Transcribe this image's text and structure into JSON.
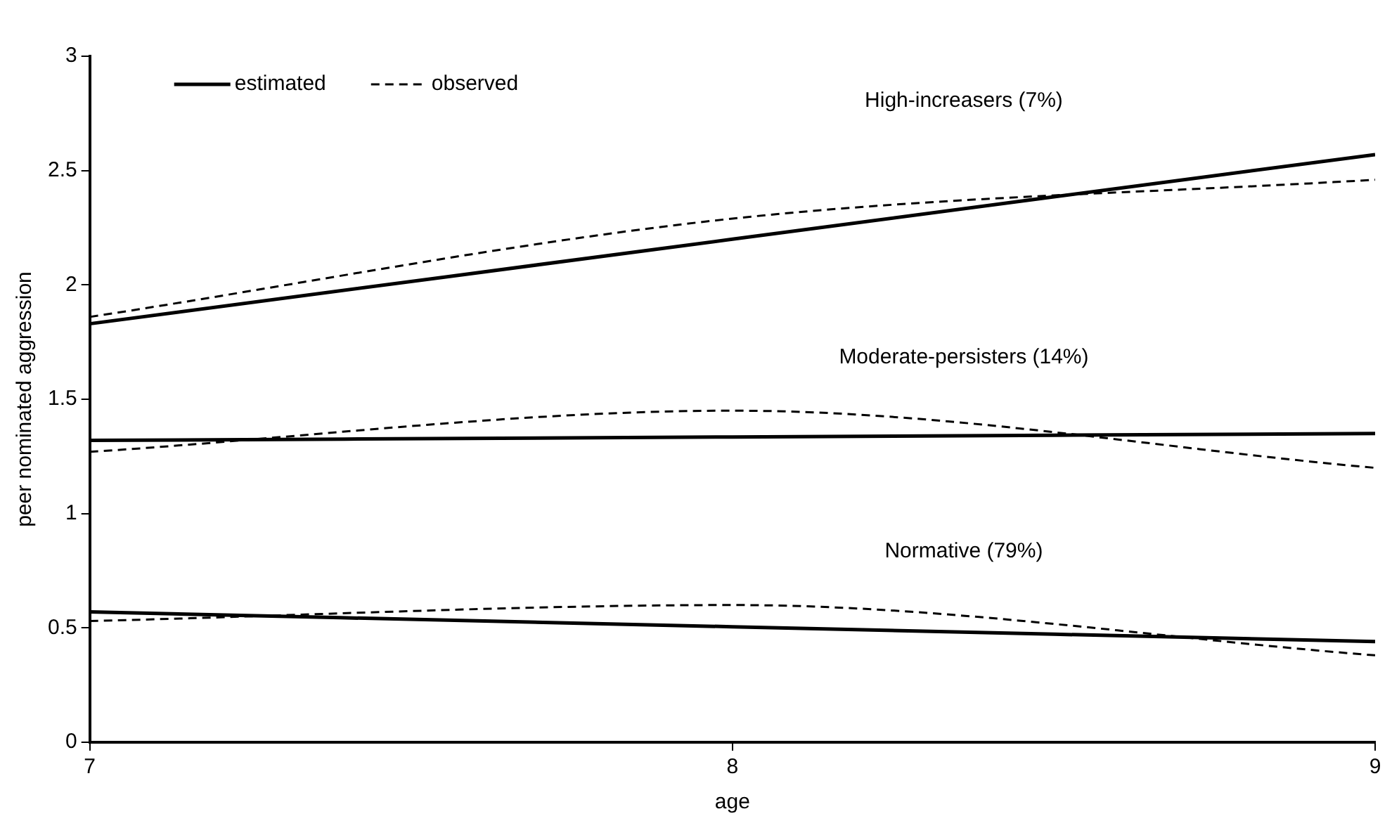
{
  "chart_data": {
    "type": "line",
    "xlabel": "age",
    "ylabel": "peer nominated aggression",
    "x": [
      7,
      8,
      9
    ],
    "series": [
      {
        "name": "estimated",
        "color": "#000000",
        "line_style": "solid",
        "values": [
          1.83,
          2.2,
          2.57
        ]
      },
      {
        "name": "observed",
        "color": "#000000",
        "line_style": "dashed",
        "values": [
          1.86,
          2.29,
          2.46
        ]
      },
      {
        "color": "#000000",
        "line_style": "solid",
        "values": [
          1.32,
          1.335,
          1.35
        ]
      },
      {
        "color": "#000000",
        "line_style": "dashed",
        "values": [
          1.27,
          1.45,
          1.2
        ]
      },
      {
        "color": "#000000",
        "line_style": "solid",
        "values": [
          0.57,
          0.505,
          0.44
        ]
      },
      {
        "color": "#000000",
        "line_style": "dashed",
        "values": [
          0.53,
          0.6,
          0.38
        ]
      }
    ],
    "annotations": [
      "High-increasers (7%)",
      "Moderate-persisters (14%)",
      "Normative (79%)"
    ],
    "xlim": [
      7,
      9
    ],
    "xticks": [
      7,
      8,
      9
    ],
    "ylim": [
      0,
      3
    ],
    "yticks": [
      0,
      0.5,
      1,
      1.5,
      2,
      2.5,
      3
    ],
    "grid": false,
    "legend": "top left",
    "marker": "none"
  }
}
